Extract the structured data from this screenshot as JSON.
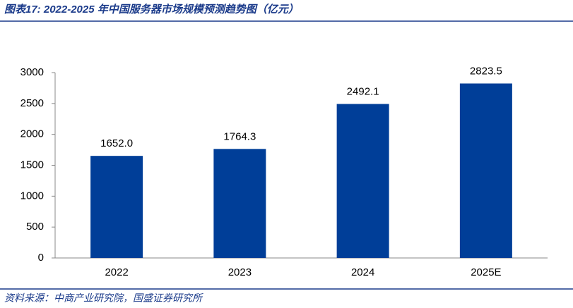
{
  "chart_data": {
    "type": "bar",
    "title": "图表17:  2022-2025 年中国服务器市场规模预测趋势图（亿元）",
    "source": "资料来源：中商产业研究院，国盛证券研究所",
    "categories": [
      "2022",
      "2023",
      "2024",
      "2025E"
    ],
    "values": [
      1652.0,
      1764.3,
      2492.1,
      2823.5
    ],
    "value_labels": [
      "1652.0",
      "1764.3",
      "2492.1",
      "2823.5"
    ],
    "color": "#003e98",
    "ylim": [
      0,
      3000
    ],
    "yticks": [
      0,
      500,
      1000,
      1500,
      2000,
      2500,
      3000
    ],
    "grid": false
  }
}
